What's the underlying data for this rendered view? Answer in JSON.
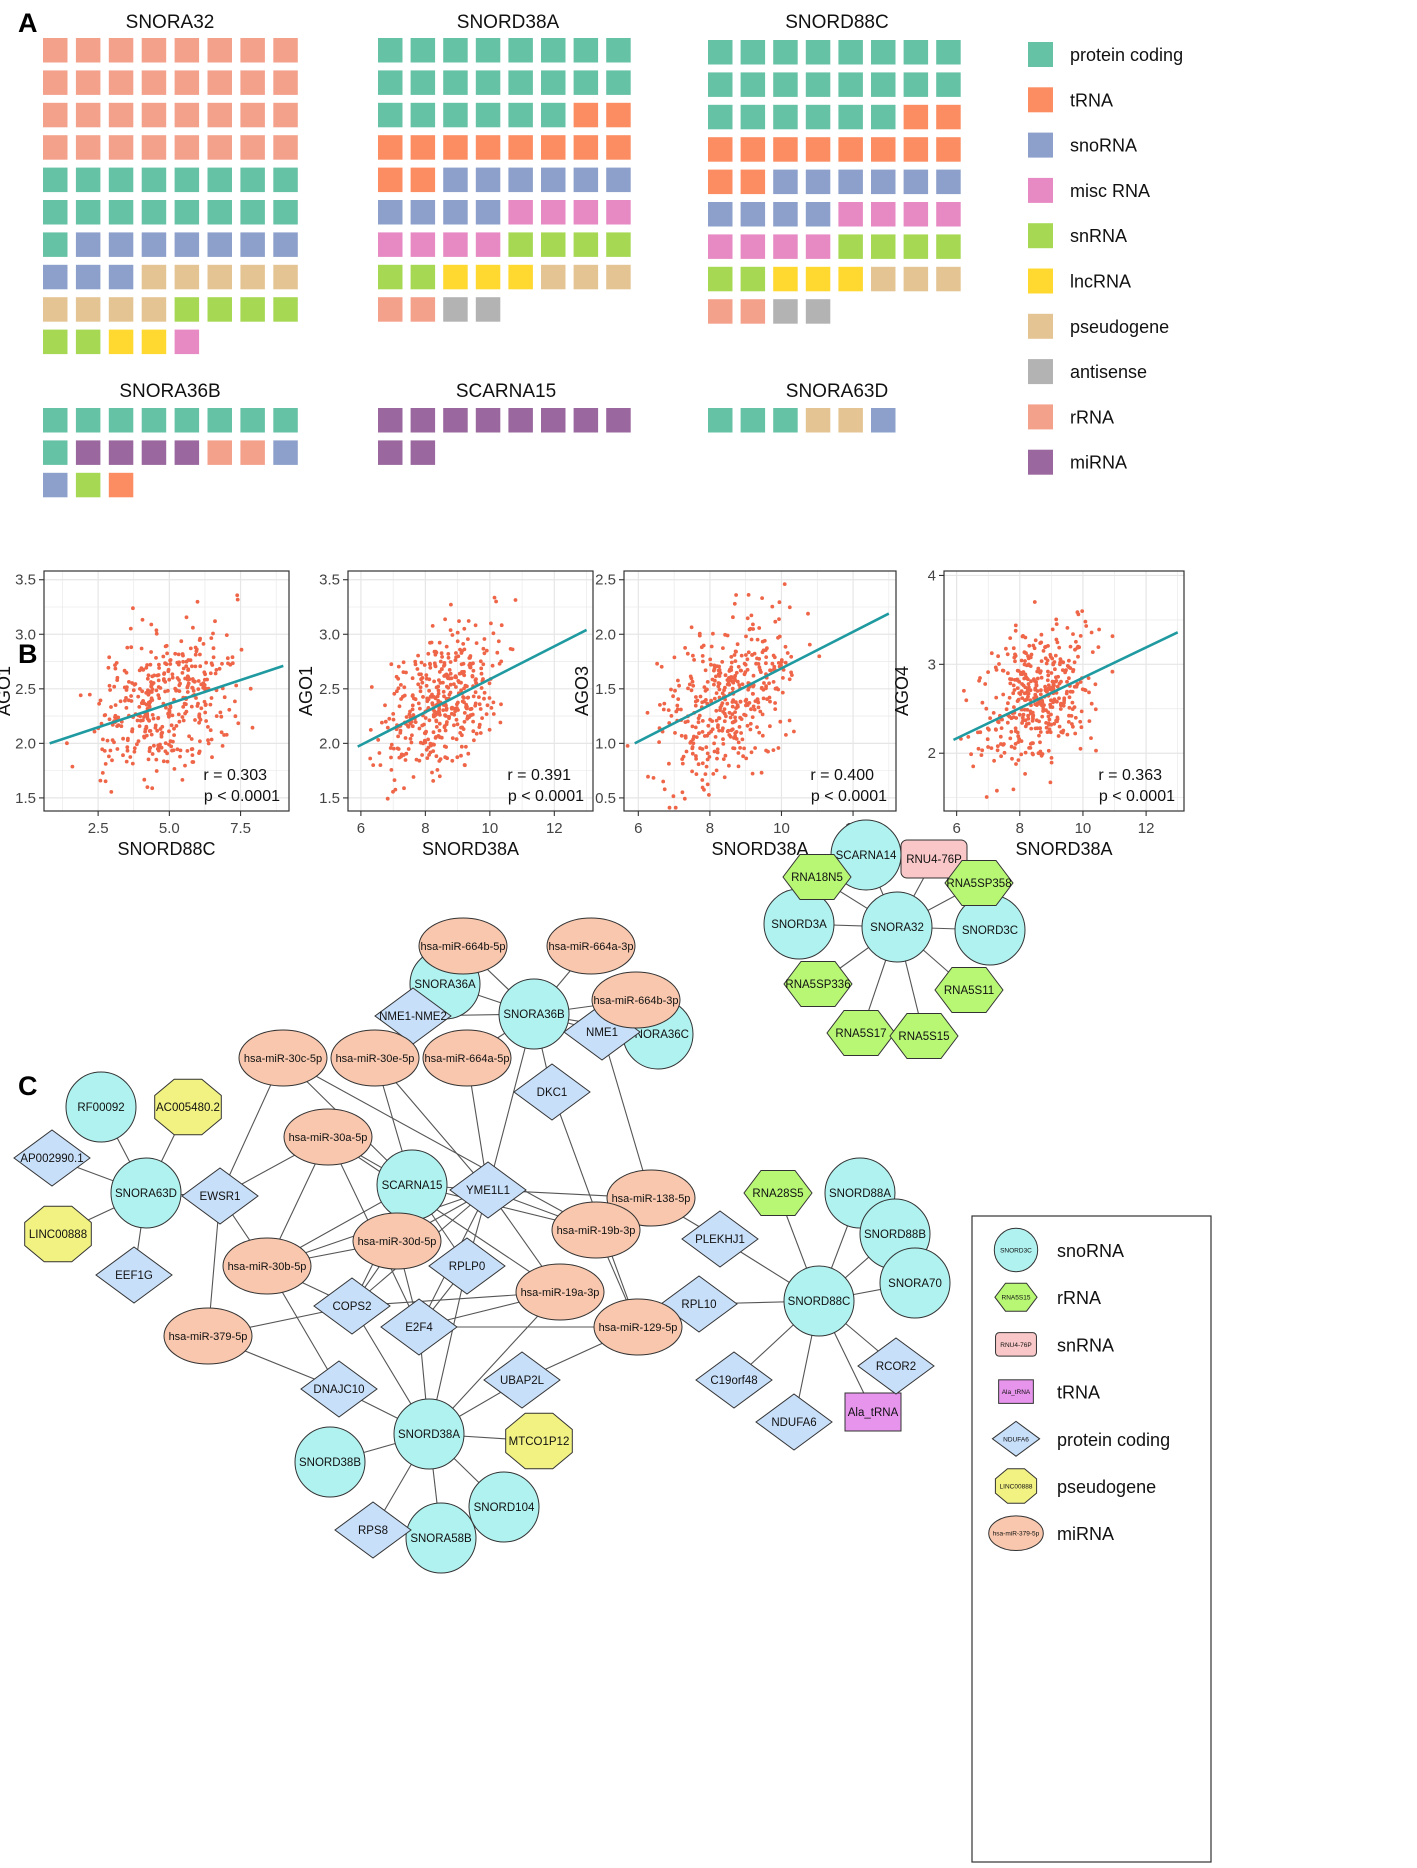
{
  "panels": {
    "a": "A",
    "b": "B",
    "c": "C"
  },
  "colors": {
    "protein coding": "#66c2a5",
    "tRNA": "#fc8d62",
    "snoRNA": "#8da0cb",
    "misc RNA": "#e78ac3",
    "snRNA": "#a6d854",
    "lncRNA": "#ffd92f",
    "pseudogene": "#e5c494",
    "antisense": "#b3b3b3",
    "rRNA": "#f4a18c",
    "miRNA": "#9a679e"
  },
  "waffle": {
    "legend": [
      "protein coding",
      "tRNA",
      "snoRNA",
      "misc RNA",
      "snRNA",
      "lncRNA",
      "pseudogene",
      "antisense",
      "rRNA",
      "miRNA"
    ],
    "charts": [
      {
        "title": "SNORA32",
        "counts": [
          [
            "rRNA",
            32
          ],
          [
            "protein coding",
            17
          ],
          [
            "snoRNA",
            10
          ],
          [
            "pseudogene",
            9
          ],
          [
            "snRNA",
            6
          ],
          [
            "lncRNA",
            2
          ],
          [
            "misc RNA",
            1
          ]
        ]
      },
      {
        "title": "SNORD38A",
        "counts": [
          [
            "protein coding",
            22
          ],
          [
            "tRNA",
            12
          ],
          [
            "snoRNA",
            10
          ],
          [
            "misc RNA",
            8
          ],
          [
            "snRNA",
            6
          ],
          [
            "lncRNA",
            3
          ],
          [
            "pseudogene",
            3
          ],
          [
            "rRNA",
            2
          ],
          [
            "antisense",
            2
          ]
        ]
      },
      {
        "title": "SNORD88C",
        "counts": [
          [
            "protein coding",
            22
          ],
          [
            "tRNA",
            12
          ],
          [
            "snoRNA",
            10
          ],
          [
            "misc RNA",
            8
          ],
          [
            "snRNA",
            6
          ],
          [
            "lncRNA",
            3
          ],
          [
            "pseudogene",
            3
          ],
          [
            "rRNA",
            2
          ],
          [
            "antisense",
            2
          ]
        ]
      },
      {
        "title": "SNORA36B",
        "counts": [
          [
            "protein coding",
            9
          ],
          [
            "miRNA",
            4
          ],
          [
            "rRNA",
            2
          ],
          [
            "snoRNA",
            2
          ],
          [
            "snRNA",
            1
          ],
          [
            "tRNA",
            1
          ]
        ]
      },
      {
        "title": "SCARNA15",
        "counts": [
          [
            "miRNA",
            10
          ]
        ]
      },
      {
        "title": "SNORA63D",
        "counts": [
          [
            "protein coding",
            3
          ],
          [
            "pseudogene",
            2
          ],
          [
            "snoRNA",
            1
          ]
        ]
      }
    ]
  },
  "chart_data": [
    {
      "type": "scatter",
      "title": "",
      "xlabel": "SNORD88C",
      "ylabel": "AGO1",
      "xlim": [
        0.6,
        9.2
      ],
      "ylim": [
        1.38,
        3.58
      ],
      "xticks": [
        "2.5",
        "5.0",
        "7.5"
      ],
      "yticks": [
        "1.5",
        "2.0",
        "2.5",
        "3.0",
        "3.5"
      ],
      "r_text": "r = 0.303",
      "p_text": "p < 0.0001",
      "fit": {
        "x": [
          0.8,
          9.0
        ],
        "y": [
          2.0,
          2.71
        ]
      },
      "point_cloud": {
        "n": 420,
        "x_center": 4.9,
        "x_sd": 1.25,
        "y_center": 2.4,
        "y_sd": 0.32,
        "slope": 0.087
      }
    },
    {
      "type": "scatter",
      "title": "",
      "xlabel": "SNORD38A",
      "ylabel": "AGO1",
      "xlim": [
        5.6,
        13.2
      ],
      "ylim": [
        1.38,
        3.58
      ],
      "xticks": [
        "6",
        "8",
        "10",
        "12"
      ],
      "yticks": [
        "1.5",
        "2.0",
        "2.5",
        "3.0",
        "3.5"
      ],
      "r_text": "r = 0.391",
      "p_text": "p < 0.0001",
      "fit": {
        "x": [
          5.9,
          13.0
        ],
        "y": [
          1.97,
          3.04
        ]
      },
      "point_cloud": {
        "n": 420,
        "x_center": 8.5,
        "x_sd": 0.9,
        "y_center": 2.4,
        "y_sd": 0.3,
        "slope": 0.15
      }
    },
    {
      "type": "scatter",
      "title": "",
      "xlabel": "SNORD38A",
      "ylabel": "AGO3",
      "xlim": [
        5.6,
        13.2
      ],
      "ylim": [
        0.38,
        2.58
      ],
      "xticks": [
        "6",
        "8",
        "10",
        "12"
      ],
      "yticks": [
        "0.5",
        "1.0",
        "1.5",
        "2.0",
        "2.5"
      ],
      "r_text": "r = 0.400",
      "p_text": "p < 0.0001",
      "fit": {
        "x": [
          5.9,
          13.0
        ],
        "y": [
          1.0,
          2.19
        ]
      },
      "point_cloud": {
        "n": 420,
        "x_center": 8.5,
        "x_sd": 0.9,
        "y_center": 1.4,
        "y_sd": 0.35,
        "slope": 0.17
      }
    },
    {
      "type": "scatter",
      "title": "",
      "xlabel": "SNORD38A",
      "ylabel": "AGO4",
      "xlim": [
        5.6,
        13.2
      ],
      "ylim": [
        1.35,
        4.05
      ],
      "xticks": [
        "6",
        "8",
        "10",
        "12"
      ],
      "yticks": [
        "2",
        "3",
        "4"
      ],
      "r_text": "r = 0.363",
      "p_text": "p < 0.0001",
      "fit": {
        "x": [
          5.9,
          13.0
        ],
        "y": [
          2.15,
          3.36
        ]
      },
      "point_cloud": {
        "n": 420,
        "x_center": 8.5,
        "x_sd": 0.9,
        "y_center": 2.6,
        "y_sd": 0.37,
        "slope": 0.17
      }
    }
  ],
  "network": {
    "nodes": [
      {
        "id": "SNORD38A",
        "type": "snoRNA"
      },
      {
        "id": "SNORD88C",
        "type": "snoRNA"
      },
      {
        "id": "SNORA36B",
        "type": "snoRNA"
      },
      {
        "id": "SCARNA15",
        "type": "snoRNA"
      },
      {
        "id": "SNORA63D",
        "type": "snoRNA"
      },
      {
        "id": "SNORA32",
        "type": "snoRNA"
      },
      {
        "id": "RF00092",
        "type": "snoRNA"
      },
      {
        "id": "SNORA36A",
        "type": "snoRNA"
      },
      {
        "id": "SNORA36C",
        "type": "snoRNA"
      },
      {
        "id": "SCARNA14",
        "type": "snoRNA"
      },
      {
        "id": "SNORD3A",
        "type": "snoRNA"
      },
      {
        "id": "SNORD3C",
        "type": "snoRNA"
      },
      {
        "id": "SNORD88A",
        "type": "snoRNA"
      },
      {
        "id": "SNORD88B",
        "type": "snoRNA"
      },
      {
        "id": "SNORA70",
        "type": "snoRNA"
      },
      {
        "id": "SNORD38B",
        "type": "snoRNA"
      },
      {
        "id": "SNORA58B",
        "type": "snoRNA"
      },
      {
        "id": "SNORD104",
        "type": "snoRNA"
      },
      {
        "id": "RNU4-76P",
        "type": "snRNA"
      },
      {
        "id": "RNA18N5",
        "type": "rRNA"
      },
      {
        "id": "RNA5SP358",
        "type": "rRNA"
      },
      {
        "id": "RNA5SP336",
        "type": "rRNA"
      },
      {
        "id": "RNA5S11",
        "type": "rRNA"
      },
      {
        "id": "RNA5S17",
        "type": "rRNA"
      },
      {
        "id": "RNA5S15",
        "type": "rRNA"
      },
      {
        "id": "RNA28S5",
        "type": "rRNA"
      },
      {
        "id": "Ala_tRNA",
        "type": "tRNA"
      },
      {
        "id": "AC005480.2",
        "type": "pseudogene"
      },
      {
        "id": "LINC00888",
        "type": "pseudogene"
      },
      {
        "id": "MTCO1P12",
        "type": "pseudogene"
      },
      {
        "id": "AP002990.1",
        "type": "protein coding"
      },
      {
        "id": "EEF1G",
        "type": "protein coding"
      },
      {
        "id": "EWSR1",
        "type": "protein coding"
      },
      {
        "id": "NME1-NME2",
        "type": "protein coding"
      },
      {
        "id": "NME1",
        "type": "protein coding"
      },
      {
        "id": "DKC1",
        "type": "protein coding"
      },
      {
        "id": "YME1L1",
        "type": "protein coding"
      },
      {
        "id": "PLEKHJ1",
        "type": "protein coding"
      },
      {
        "id": "RPLP0",
        "type": "protein coding"
      },
      {
        "id": "COPS2",
        "type": "protein coding"
      },
      {
        "id": "E2F4",
        "type": "protein coding"
      },
      {
        "id": "RPL10",
        "type": "protein coding"
      },
      {
        "id": "UBAP2L",
        "type": "protein coding"
      },
      {
        "id": "DNAJC10",
        "type": "protein coding"
      },
      {
        "id": "C19orf48",
        "type": "protein coding"
      },
      {
        "id": "NDUFA6",
        "type": "protein coding"
      },
      {
        "id": "RCOR2",
        "type": "protein coding"
      },
      {
        "id": "RPS8",
        "type": "protein coding"
      },
      {
        "id": "hsa-miR-664b-5p",
        "type": "miRNA"
      },
      {
        "id": "hsa-miR-664a-3p",
        "type": "miRNA"
      },
      {
        "id": "hsa-miR-664b-3p",
        "type": "miRNA"
      },
      {
        "id": "hsa-miR-664a-5p",
        "type": "miRNA"
      },
      {
        "id": "hsa-miR-30c-5p",
        "type": "miRNA"
      },
      {
        "id": "hsa-miR-30e-5p",
        "type": "miRNA"
      },
      {
        "id": "hsa-miR-30a-5p",
        "type": "miRNA"
      },
      {
        "id": "hsa-miR-138-5p",
        "type": "miRNA"
      },
      {
        "id": "hsa-miR-19b-3p",
        "type": "miRNA"
      },
      {
        "id": "hsa-miR-30d-5p",
        "type": "miRNA"
      },
      {
        "id": "hsa-miR-30b-5p",
        "type": "miRNA"
      },
      {
        "id": "hsa-miR-19a-3p",
        "type": "miRNA"
      },
      {
        "id": "hsa-miR-129-5p",
        "type": "miRNA"
      },
      {
        "id": "hsa-miR-379-5p",
        "type": "miRNA"
      }
    ],
    "edges": [
      [
        "SNORA36B",
        "hsa-miR-664b-5p"
      ],
      [
        "SNORA36B",
        "hsa-miR-664a-3p"
      ],
      [
        "SNORA36B",
        "hsa-miR-664b-3p"
      ],
      [
        "SNORA36B",
        "SNORA36A"
      ],
      [
        "SNORA36B",
        "SNORA36C"
      ],
      [
        "SNORA36B",
        "NME1-NME2"
      ],
      [
        "SNORA36B",
        "NME1"
      ],
      [
        "SNORA36B",
        "DKC1"
      ],
      [
        "SNORA36B",
        "hsa-miR-664a-5p"
      ],
      [
        "SNORA36B",
        "YME1L1"
      ],
      [
        "SNORA63D",
        "RF00092"
      ],
      [
        "SNORA63D",
        "AC005480.2"
      ],
      [
        "SNORA63D",
        "AP002990.1"
      ],
      [
        "SNORA63D",
        "LINC00888"
      ],
      [
        "SNORA63D",
        "EEF1G"
      ],
      [
        "SNORA63D",
        "EWSR1"
      ],
      [
        "SNORA32",
        "SCARNA14"
      ],
      [
        "SNORA32",
        "RNU4-76P"
      ],
      [
        "SNORA32",
        "RNA18N5"
      ],
      [
        "SNORA32",
        "RNA5SP358"
      ],
      [
        "SNORA32",
        "SNORD3A"
      ],
      [
        "SNORA32",
        "SNORD3C"
      ],
      [
        "SNORA32",
        "RNA5SP336"
      ],
      [
        "SNORA32",
        "RNA5S11"
      ],
      [
        "SNORA32",
        "RNA5S17"
      ],
      [
        "SNORA32",
        "RNA5S15"
      ],
      [
        "SNORD88C",
        "RNA28S5"
      ],
      [
        "SNORD88C",
        "SNORD88A"
      ],
      [
        "SNORD88C",
        "SNORD88B"
      ],
      [
        "SNORD88C",
        "SNORA70"
      ],
      [
        "SNORD88C",
        "RCOR2"
      ],
      [
        "SNORD88C",
        "Ala_tRNA"
      ],
      [
        "SNORD88C",
        "NDUFA6"
      ],
      [
        "SNORD88C",
        "C19orf48"
      ],
      [
        "SNORD88C",
        "RPL10"
      ],
      [
        "SNORD88C",
        "PLEKHJ1"
      ],
      [
        "SNORD38A",
        "SNORD38B"
      ],
      [
        "SNORD38A",
        "RPS8"
      ],
      [
        "SNORD38A",
        "SNORA58B"
      ],
      [
        "SNORD38A",
        "SNORD104"
      ],
      [
        "SNORD38A",
        "MTCO1P12"
      ],
      [
        "SNORD38A",
        "UBAP2L"
      ],
      [
        "SNORD38A",
        "DNAJC10"
      ],
      [
        "SNORD38A",
        "COPS2"
      ],
      [
        "SNORD38A",
        "E2F4"
      ],
      [
        "SNORD38A",
        "RPLP0"
      ],
      [
        "SNORD38A",
        "hsa-miR-19a-3p"
      ],
      [
        "SCARNA15",
        "hsa-miR-30c-5p"
      ],
      [
        "SCARNA15",
        "hsa-miR-30e-5p"
      ],
      [
        "SCARNA15",
        "hsa-miR-30a-5p"
      ],
      [
        "SCARNA15",
        "hsa-miR-30d-5p"
      ],
      [
        "SCARNA15",
        "hsa-miR-30b-5p"
      ],
      [
        "SCARNA15",
        "hsa-miR-19b-3p"
      ],
      [
        "SCARNA15",
        "COPS2"
      ],
      [
        "SCARNA15",
        "YME1L1"
      ],
      [
        "SCARNA15",
        "RPLP0"
      ],
      [
        "EWSR1",
        "hsa-miR-30c-5p"
      ],
      [
        "EWSR1",
        "hsa-miR-30a-5p"
      ],
      [
        "EWSR1",
        "hsa-miR-30b-5p"
      ],
      [
        "EWSR1",
        "hsa-miR-379-5p"
      ],
      [
        "YME1L1",
        "hsa-miR-664a-5p"
      ],
      [
        "YME1L1",
        "hsa-miR-138-5p"
      ],
      [
        "YME1L1",
        "hsa-miR-19b-3p"
      ],
      [
        "YME1L1",
        "hsa-miR-19a-3p"
      ],
      [
        "YME1L1",
        "hsa-miR-30b-5p"
      ],
      [
        "YME1L1",
        "hsa-miR-30d-5p"
      ],
      [
        "YME1L1",
        "COPS2"
      ],
      [
        "YME1L1",
        "E2F4"
      ],
      [
        "YME1L1",
        "RPLP0"
      ],
      [
        "NME1",
        "hsa-miR-138-5p"
      ],
      [
        "DKC1",
        "hsa-miR-129-5p"
      ],
      [
        "hsa-miR-138-5p",
        "PLEKHJ1"
      ],
      [
        "hsa-miR-30c-5p",
        "hsa-miR-19b-3p"
      ],
      [
        "hsa-miR-30a-5p",
        "E2F4"
      ],
      [
        "hsa-miR-30a-5p",
        "hsa-miR-30b-5p"
      ],
      [
        "hsa-miR-30d-5p",
        "hsa-miR-30b-5p"
      ],
      [
        "hsa-miR-30d-5p",
        "E2F4"
      ],
      [
        "hsa-miR-30d-5p",
        "COPS2"
      ],
      [
        "hsa-miR-30b-5p",
        "COPS2"
      ],
      [
        "hsa-miR-30b-5p",
        "DNAJC10"
      ],
      [
        "hsa-miR-379-5p",
        "COPS2"
      ],
      [
        "hsa-miR-379-5p",
        "DNAJC10"
      ],
      [
        "hsa-miR-19a-3p",
        "COPS2"
      ],
      [
        "hsa-miR-19a-3p",
        "E2F4"
      ],
      [
        "hsa-miR-19b-3p",
        "hsa-miR-129-5p"
      ],
      [
        "hsa-miR-129-5p",
        "E2F4"
      ],
      [
        "hsa-miR-129-5p",
        "RPL10"
      ],
      [
        "hsa-miR-129-5p",
        "UBAP2L"
      ],
      [
        "RPLP0",
        "E2F4"
      ],
      [
        "hsa-miR-30a-5p",
        "hsa-miR-19a-3p"
      ],
      [
        "hsa-miR-30e-5p",
        "YME1L1"
      ]
    ],
    "legend": [
      {
        "label": "snoRNA",
        "shape": "circle",
        "sample": "SNORD3C"
      },
      {
        "label": "rRNA",
        "shape": "hexagon",
        "sample": "RNA5S15"
      },
      {
        "label": "snRNA",
        "shape": "roundrect",
        "sample": "RNU4-76P"
      },
      {
        "label": "tRNA",
        "shape": "rect",
        "sample": "Ala_tRNA"
      },
      {
        "label": "protein coding",
        "shape": "diamond",
        "sample": "NDUFA6"
      },
      {
        "label": "pseudogene",
        "shape": "octagon",
        "sample": "LINC00888"
      },
      {
        "label": "miRNA",
        "shape": "ellipse",
        "sample": "hsa-miR-379-5p"
      }
    ],
    "node_colors": {
      "snoRNA": "#aff2f0",
      "rRNA": "#b7f774",
      "snRNA": "#f9c7c7",
      "tRNA": "#e694ec",
      "protein coding": "#c8dffa",
      "pseudogene": "#f2f283",
      "miRNA": "#f8c7ad"
    }
  }
}
